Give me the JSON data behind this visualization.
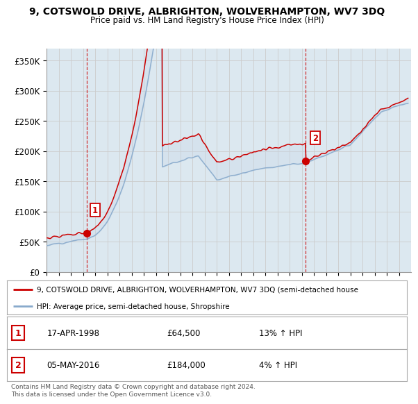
{
  "title": "9, COTSWOLD DRIVE, ALBRIGHTON, WOLVERHAMPTON, WV7 3DQ",
  "subtitle": "Price paid vs. HM Land Registry's House Price Index (HPI)",
  "legend_line1": "9, COTSWOLD DRIVE, ALBRIGHTON, WOLVERHAMPTON, WV7 3DQ (semi-detached house",
  "legend_line2": "HPI: Average price, semi-detached house, Shropshire",
  "footnote": "Contains HM Land Registry data © Crown copyright and database right 2024.\nThis data is licensed under the Open Government Licence v3.0.",
  "sale1_label": "1",
  "sale1_date": "17-APR-1998",
  "sale1_price": "£64,500",
  "sale1_hpi": "13% ↑ HPI",
  "sale2_label": "2",
  "sale2_date": "05-MAY-2016",
  "sale2_price": "£184,000",
  "sale2_hpi": "4% ↑ HPI",
  "red_color": "#cc0000",
  "blue_color": "#88aacc",
  "fill_color": "#c8d8e8",
  "grid_color": "#cccccc",
  "background_color": "#ffffff",
  "ylim": [
    0,
    370000
  ],
  "yticks": [
    0,
    50000,
    100000,
    150000,
    200000,
    250000,
    300000,
    350000
  ],
  "ytick_labels": [
    "£0",
    "£50K",
    "£100K",
    "£150K",
    "£200K",
    "£250K",
    "£300K",
    "£350K"
  ],
  "sale1_x": 1998.29,
  "sale1_y": 64500,
  "sale2_x": 2016.34,
  "sale2_y": 184000,
  "xmin": 1995,
  "xmax": 2025
}
